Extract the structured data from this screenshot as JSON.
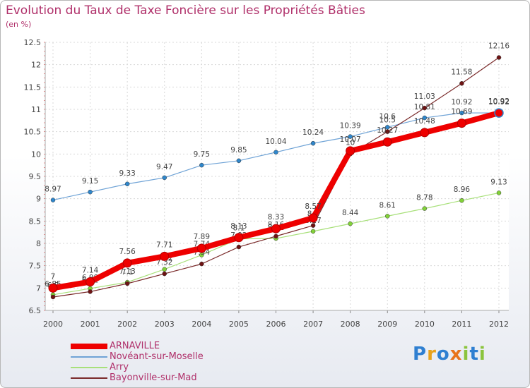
{
  "chart_data": {
    "type": "line",
    "title": "Evolution du Taux de Taxe Foncière sur les Propriétés Bâties",
    "subtitle": "(en %)",
    "xlabel": "",
    "ylabel": "",
    "ylim": [
      6.5,
      12.5
    ],
    "yticks": [
      "6.5",
      "7",
      "7.5",
      "8",
      "8.5",
      "9",
      "9.5",
      "10",
      "10.5",
      "11",
      "11.5",
      "12",
      "12.5"
    ],
    "categories": [
      "2000",
      "2001",
      "2002",
      "2003",
      "2004",
      "2005",
      "2006",
      "2007",
      "2008",
      "2009",
      "2010",
      "2011",
      "2012"
    ],
    "grid": true,
    "legend_position": "bottom-left",
    "series": [
      {
        "name": "ARNAVILLE",
        "color": "#ee0000",
        "marker": "#ee0000",
        "values": [
          7,
          7.14,
          7.56,
          7.71,
          7.89,
          8.13,
          8.33,
          8.57,
          10.07,
          10.27,
          10.48,
          10.69,
          10.92
        ]
      },
      {
        "name": "Novéant-sur-Moselle",
        "color": "#6fa3d6",
        "marker": "#2f87cc",
        "values": [
          8.97,
          9.15,
          9.33,
          9.47,
          9.75,
          9.85,
          10.04,
          10.24,
          10.39,
          10.6,
          10.81,
          10.92,
          10.92
        ]
      },
      {
        "name": "Arry",
        "color": "#a8e07a",
        "marker": "#82d238",
        "values": [
          6.85,
          6.99,
          7.13,
          7.42,
          7.74,
          8.1,
          8.11,
          8.27,
          8.44,
          8.61,
          8.78,
          8.96,
          9.13
        ]
      },
      {
        "name": "Bayonville-sur-Mad",
        "color": "#7a2a2a",
        "marker": "#6e1313",
        "values": [
          6.8,
          6.92,
          7.1,
          7.32,
          7.54,
          7.92,
          8.16,
          8.4,
          10,
          10.5,
          11.03,
          11.58,
          12.16
        ]
      }
    ]
  },
  "brand": {
    "name": "Proxiti",
    "letters": [
      "P",
      "r",
      "o",
      "x",
      "i",
      "t",
      "i"
    ],
    "colors": [
      "#2f7fd1",
      "#e8a21b",
      "#2f7fd1",
      "#e8741b",
      "#8bc43d",
      "#2f7fd1",
      "#8bc43d"
    ]
  }
}
